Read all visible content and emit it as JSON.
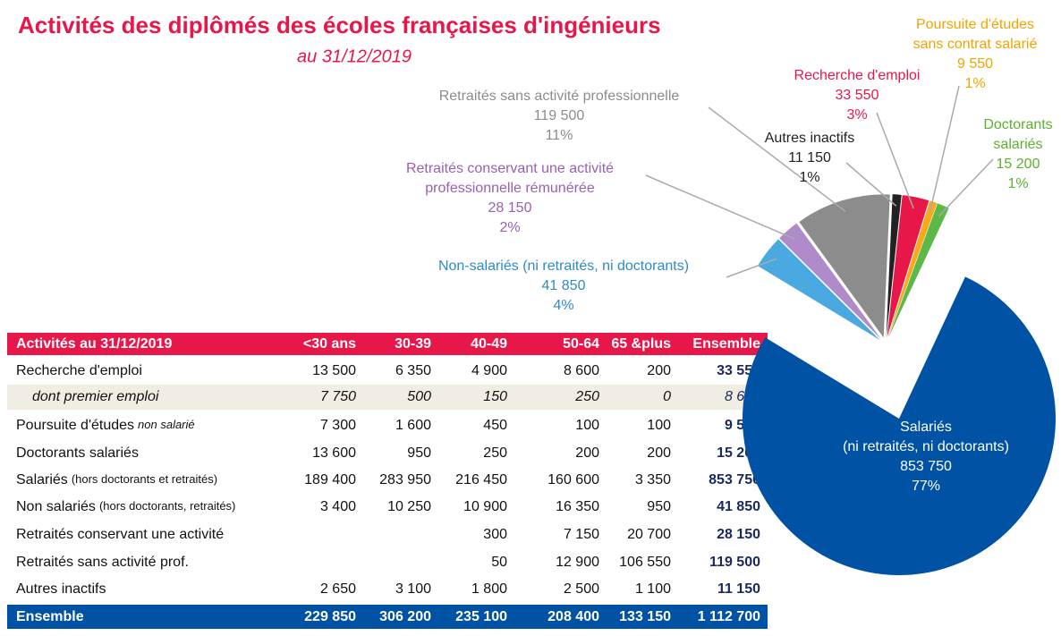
{
  "chart_data": {
    "type": "pie",
    "title": "Activités des diplômés des écoles françaises d'ingénieurs",
    "subtitle": "au 31/12/2019",
    "categories": [
      [
        "Salariés",
        "(ni retraités, ni doctorants)"
      ],
      [
        "Non-salariés (ni retraités, ni doctorants)"
      ],
      [
        "Retraités conservant une activité",
        "professionnelle rémunérée"
      ],
      [
        "Retraités sans activité professionnelle"
      ],
      [
        "Autres inactifs"
      ],
      [
        "Recherche d'emploi"
      ],
      [
        "Poursuite d'études",
        "sans contrat salarié"
      ],
      [
        "Doctorants",
        "salariés"
      ]
    ],
    "values": [
      853750,
      41850,
      28150,
      119500,
      11150,
      33550,
      9550,
      15200
    ],
    "value_labels": [
      "853 750",
      "41 850",
      "28 150",
      "119 500",
      "11 150",
      "33 550",
      "9 550",
      "15 200"
    ],
    "percent_labels": [
      "77%",
      "4%",
      "2%",
      "11%",
      "1%",
      "3%",
      "1%",
      "1%"
    ],
    "colors": [
      "#0052a5",
      "#4aa9e0",
      "#b08bc9",
      "#8c8c8c",
      "#222222",
      "#e8174a",
      "#f7a81b",
      "#5cb848"
    ],
    "label_colors": [
      "#ffffff",
      "#2e8bc9",
      "#9a5fb5",
      "#8c8c8c",
      "#222222",
      "#e8174a",
      "#f0a400",
      "#5cb030"
    ]
  },
  "table": {
    "header": [
      "Activités au 31/12/2019",
      "<30 ans",
      "30-39",
      "40-49",
      "50-64",
      "65 &plus",
      "Ensemble"
    ],
    "rows": [
      {
        "label": "Recherche d'emploi",
        "values": [
          "13 500",
          "6 350",
          "4 900",
          "8 600",
          "200",
          "33 550"
        ]
      },
      {
        "label": "dont premier emploi",
        "values": [
          "7 750",
          "500",
          "150",
          "250",
          "0",
          "8 650"
        ]
      },
      {
        "label": "Poursuite d'études",
        "note": "non salarié",
        "values": [
          "7 300",
          "1 600",
          "450",
          "100",
          "100",
          "9 550"
        ]
      },
      {
        "label": "Doctorants salariés",
        "values": [
          "13 600",
          "950",
          "250",
          "200",
          "200",
          "15 200"
        ]
      },
      {
        "label": "Salariés",
        "note": "(hors doctorants et retraités)",
        "values": [
          "189 400",
          "283 950",
          "216 450",
          "160 600",
          "3 350",
          "853 750"
        ]
      },
      {
        "label": "Non salariés",
        "note": "(hors doctorants, retraités)",
        "values": [
          "3 400",
          "10 250",
          "10 900",
          "16 350",
          "950",
          "41 850"
        ]
      },
      {
        "label": "Retraités conservant une activité",
        "values": [
          null,
          null,
          "300",
          "7 150",
          "20 700",
          "28 150"
        ]
      },
      {
        "label": "Retraités sans activité prof.",
        "values": [
          null,
          null,
          "50",
          "12 900",
          "106 550",
          "119 500"
        ]
      },
      {
        "label": "Autres inactifs",
        "values": [
          "2 650",
          "3 100",
          "1 800",
          "2 500",
          "1 100",
          "11 150"
        ]
      }
    ],
    "footer": {
      "label": "Ensemble",
      "values": [
        "229 850",
        "306 200",
        "235 100",
        "208 400",
        "133 150",
        "1 112 700"
      ]
    }
  }
}
